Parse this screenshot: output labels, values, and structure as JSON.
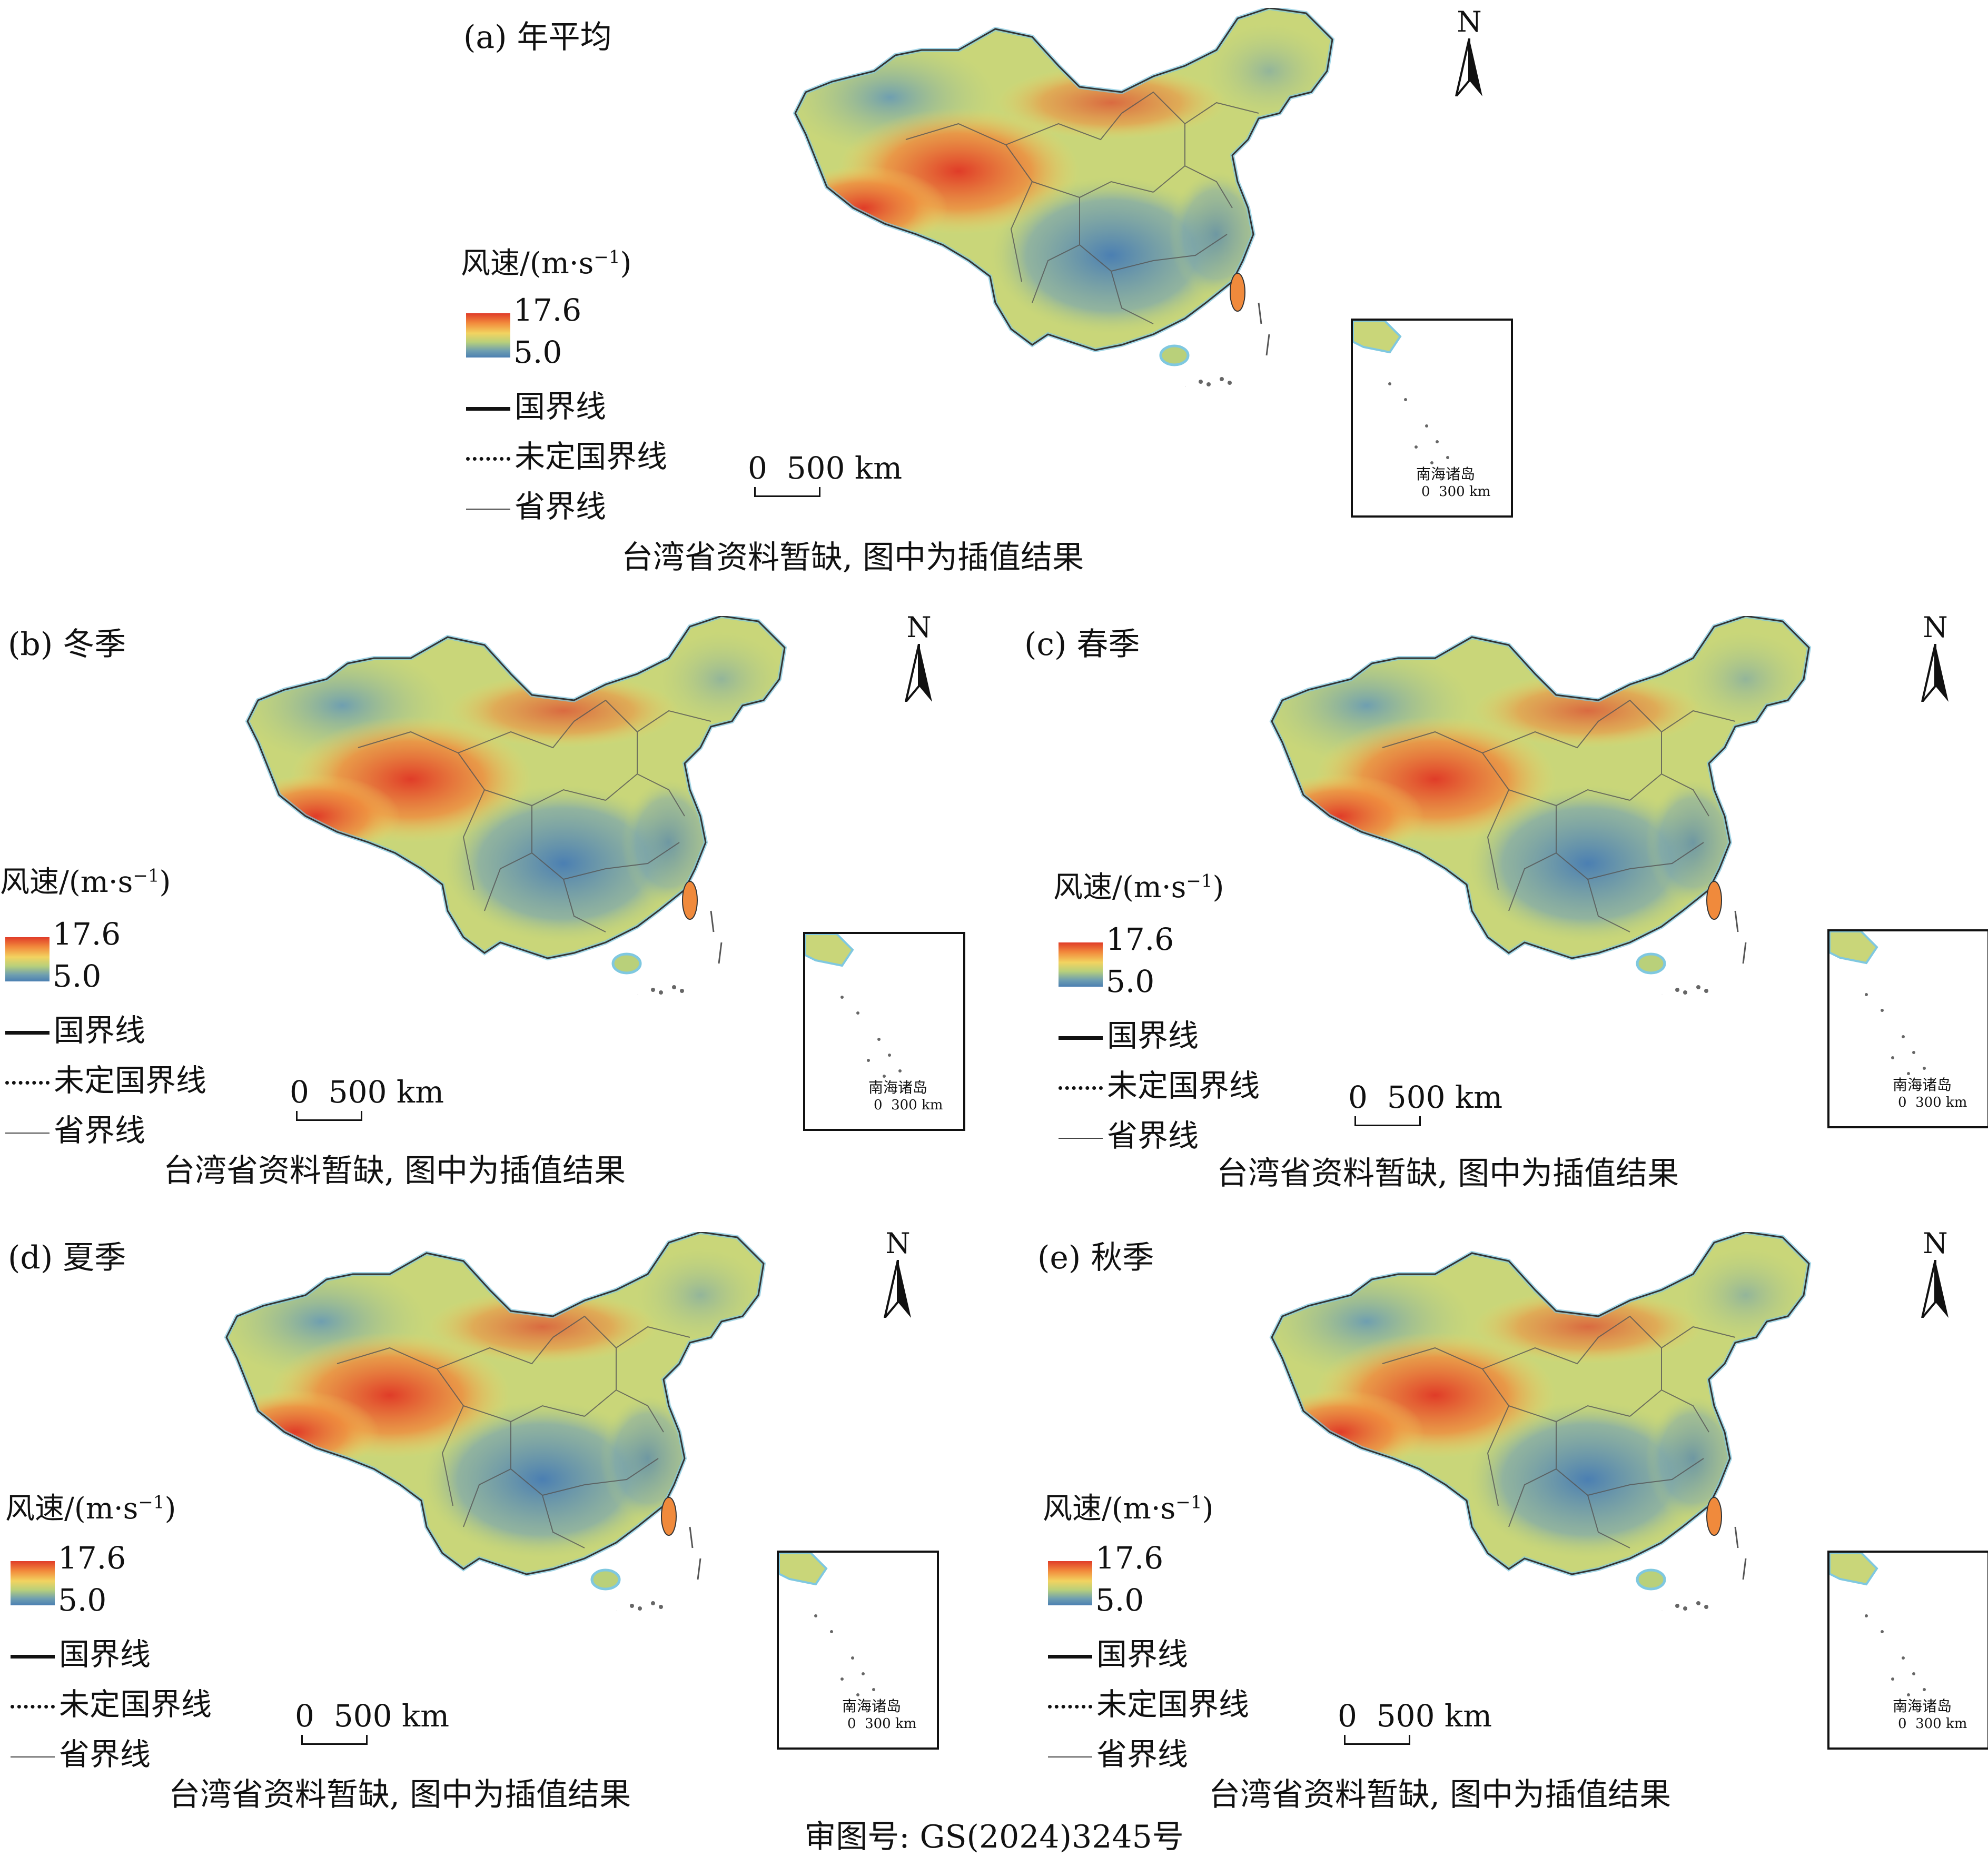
{
  "panels": [
    {
      "id": "a",
      "title": "(a) 年平均"
    },
    {
      "id": "b",
      "title": "(b) 冬季"
    },
    {
      "id": "c",
      "title": "(c) 春季"
    },
    {
      "id": "d",
      "title": "(d) 夏季"
    },
    {
      "id": "e",
      "title": "(e) 秋季"
    }
  ],
  "legend": {
    "title_main": "风速/(m·s",
    "title_sup": "−1",
    "title_end": ")",
    "max": "17.6",
    "min": "5.0",
    "items": [
      "国界线",
      "未定国界线",
      "省界线"
    ]
  },
  "scale": {
    "zero": "0",
    "label": "500 km"
  },
  "inset": {
    "name": "南海诸岛",
    "zero": "0",
    "label": "300 km"
  },
  "north": "N",
  "note": "台湾省资料暂缺, 图中为插值结果",
  "footer": "审图号: GS(2024)3245号",
  "colors": {
    "high": "#e03c28",
    "mid": "#f2d360",
    "low": "#4b7fb2",
    "sea": "#7fc8e0"
  }
}
